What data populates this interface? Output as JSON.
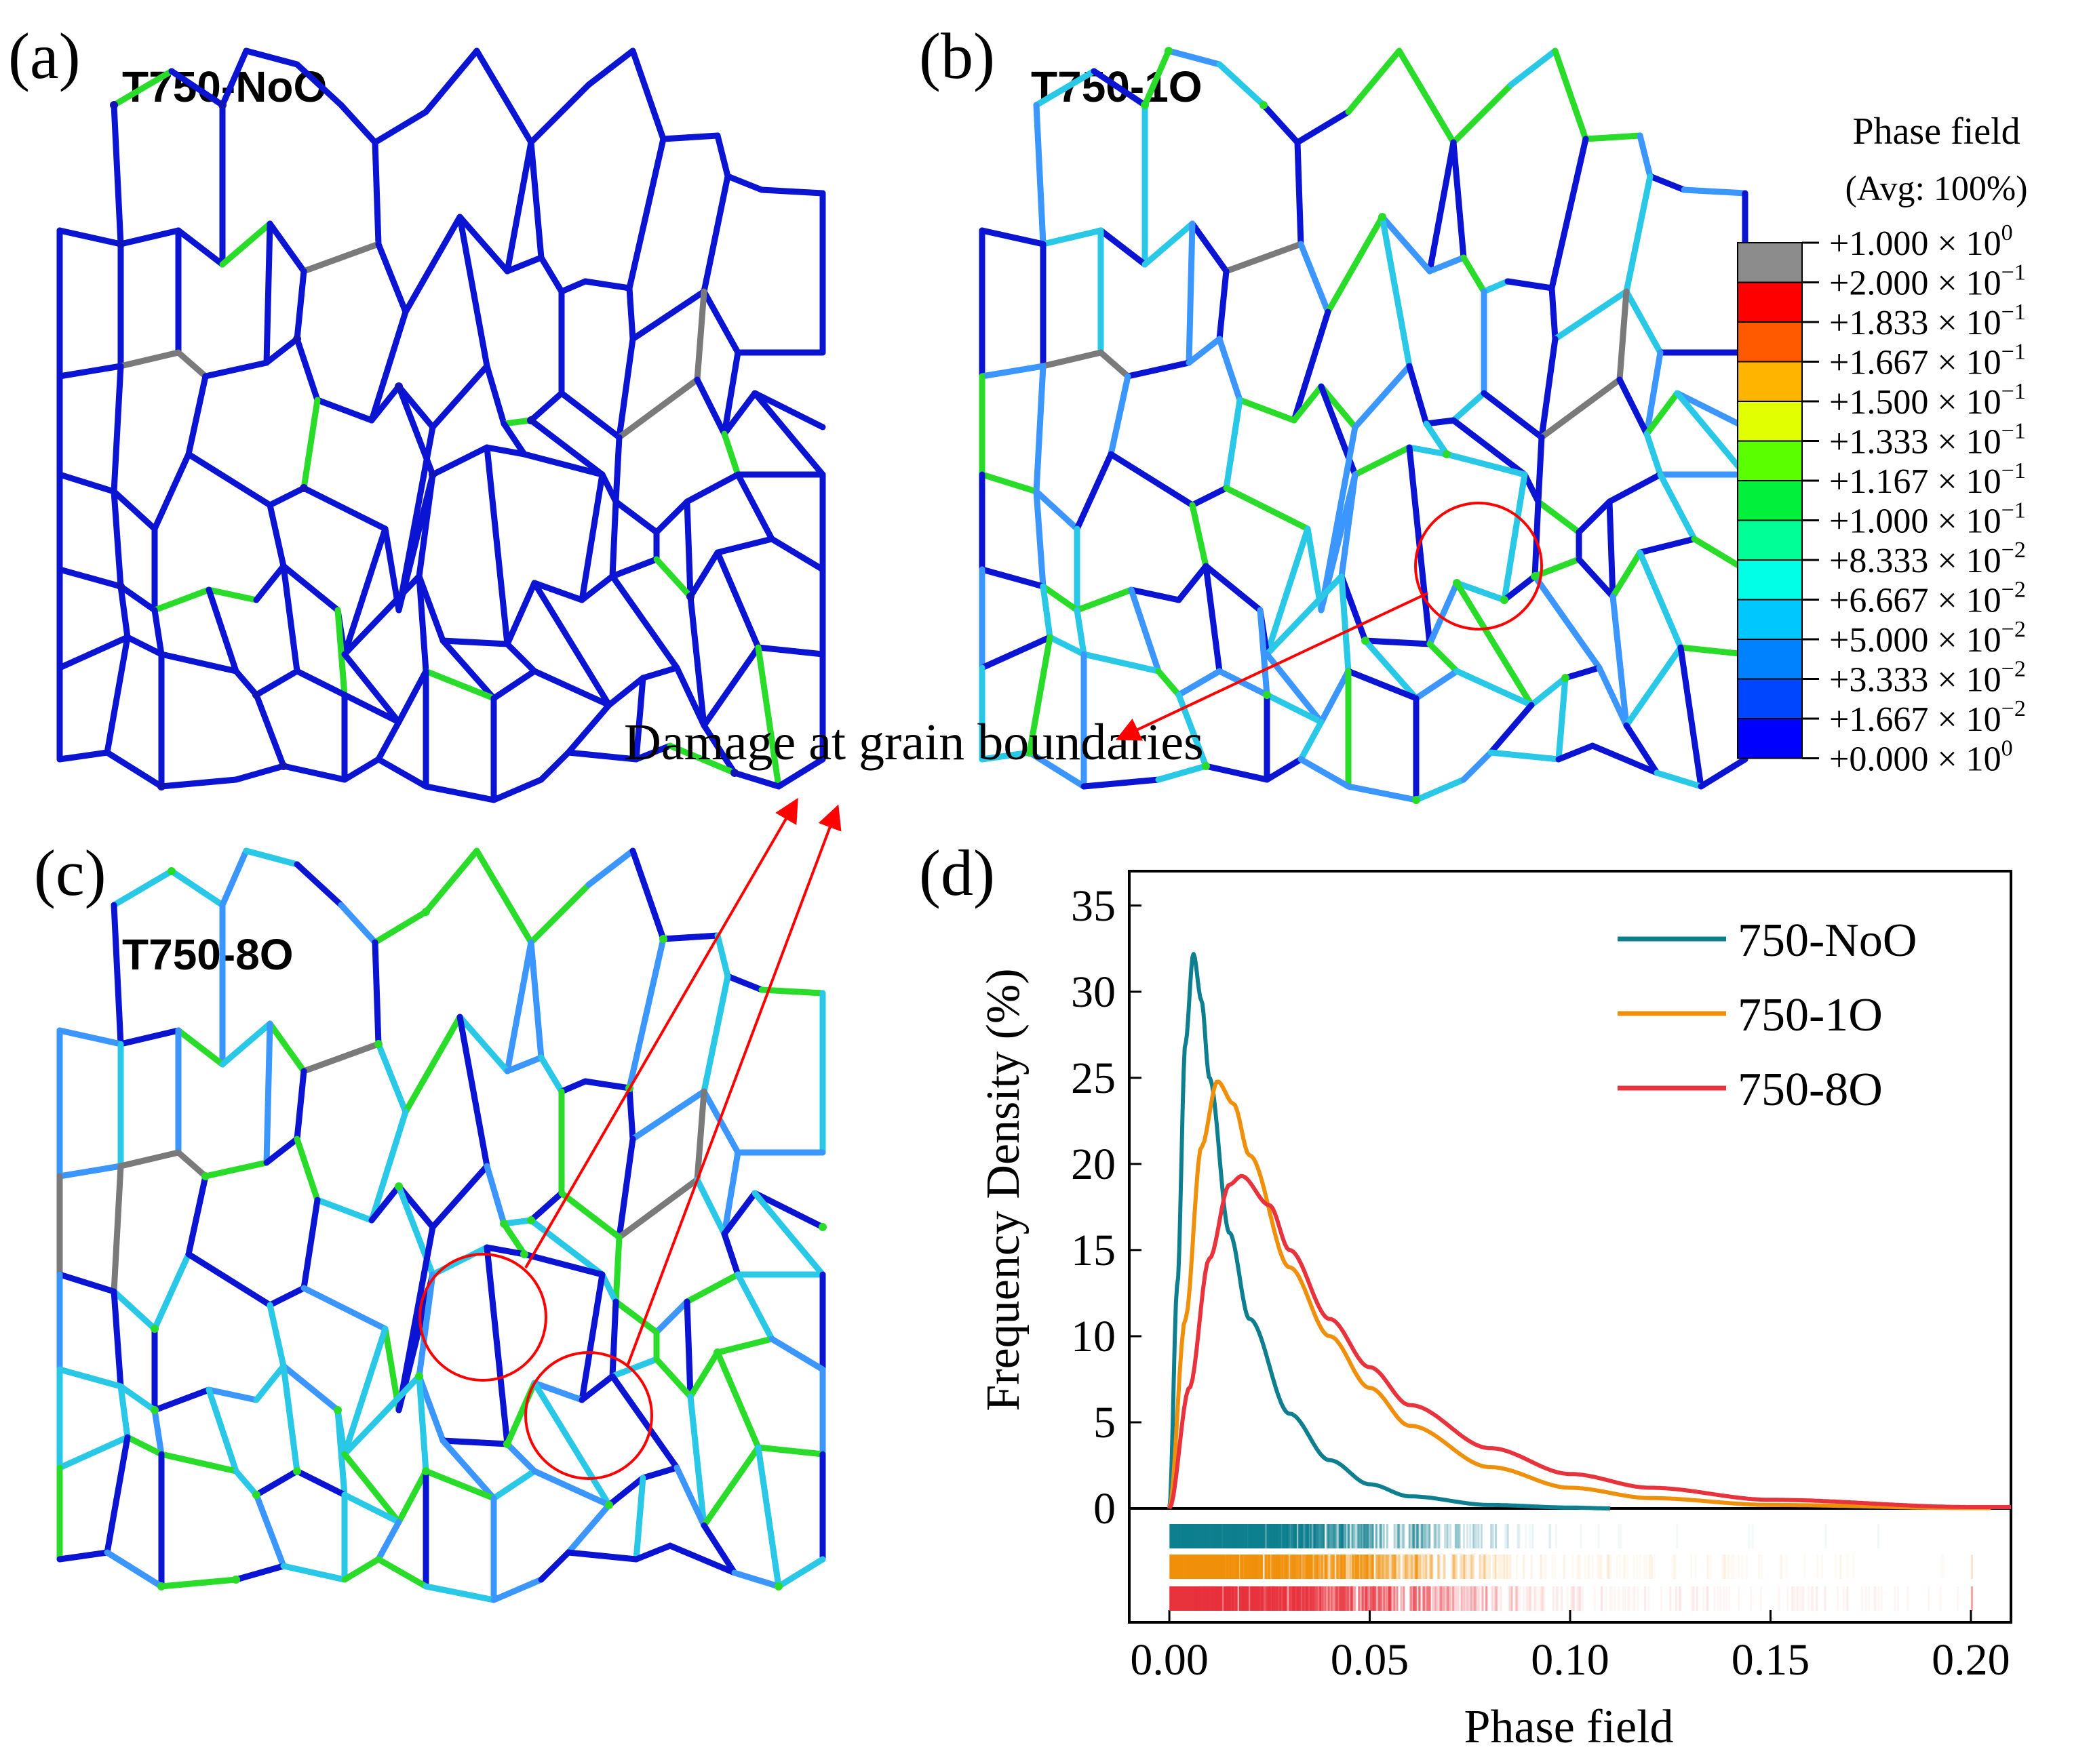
{
  "panels": {
    "a": {
      "letter": "(a)",
      "title": "T750-NoO"
    },
    "b": {
      "letter": "(b)",
      "title": "T750-1O"
    },
    "c": {
      "letter": "(c)",
      "title": "T750-8O"
    },
    "d": {
      "letter": "(d)"
    }
  },
  "annotation": "Damage at grain boundaries",
  "legend_colorbar": {
    "title": "Phase field",
    "subtitle": "(Avg: 100%)",
    "entries": [
      {
        "mantissa": "+1.000",
        "exponent": "0",
        "color": "#8c8c8c"
      },
      {
        "mantissa": "+2.000",
        "exponent": "−1",
        "color": "#ff0000"
      },
      {
        "mantissa": "+1.833",
        "exponent": "−1",
        "color": "#ff5a00"
      },
      {
        "mantissa": "+1.667",
        "exponent": "−1",
        "color": "#ffb400"
      },
      {
        "mantissa": "+1.500",
        "exponent": "−1",
        "color": "#e1ff00"
      },
      {
        "mantissa": "+1.333",
        "exponent": "−1",
        "color": "#5aff00"
      },
      {
        "mantissa": "+1.167",
        "exponent": "−1",
        "color": "#00f03c"
      },
      {
        "mantissa": "+1.000",
        "exponent": "−1",
        "color": "#00ff96"
      },
      {
        "mantissa": "+8.333",
        "exponent": "−2",
        "color": "#00ffe6"
      },
      {
        "mantissa": "+6.667",
        "exponent": "−2",
        "color": "#00c8ff"
      },
      {
        "mantissa": "+5.000",
        "exponent": "−2",
        "color": "#0082ff"
      },
      {
        "mantissa": "+3.333",
        "exponent": "−2",
        "color": "#0046ff"
      },
      {
        "mantissa": "+1.667",
        "exponent": "−2",
        "color": "#0000ff"
      },
      {
        "mantissa": "+0.000",
        "exponent": "0",
        "color": null
      }
    ],
    "times_symbol": "× 10"
  },
  "colors": {
    "blue": "#0a14d2",
    "navy": "#1414b4",
    "cyan": "#28c8e6",
    "lightblue": "#3c96ff",
    "green": "#2adc2a",
    "gray": "#7a7a7a",
    "red": "#ff0000",
    "faint": "#b4b4f0",
    "NoO": "#0e7f8f",
    "1O": "#f0900a",
    "8O": "#e8323c"
  },
  "chart_data": {
    "type": "line",
    "xlabel": "Phase field",
    "ylabel": "Frequency Density (%)",
    "xlim": [
      -0.01,
      0.21
    ],
    "ylim": [
      0,
      37
    ],
    "xticks": [
      0.0,
      0.05,
      0.1,
      0.15,
      0.2
    ],
    "xtick_labels": [
      "0.00",
      "0.05",
      "0.10",
      "0.15",
      "0.20"
    ],
    "yticks": [
      0,
      5,
      10,
      15,
      20,
      25,
      30,
      35
    ],
    "ytick_labels": [
      "0",
      "5",
      "10",
      "15",
      "20",
      "25",
      "30",
      "35"
    ],
    "legend_position": "top-right",
    "series": [
      {
        "name": "750-NoO",
        "color": "#0e7f8f",
        "peak_x": 0.006,
        "peak_y": 32.2,
        "x_end": 0.11,
        "x": [
          0,
          0.002,
          0.004,
          0.006,
          0.008,
          0.01,
          0.015,
          0.02,
          0.03,
          0.04,
          0.05,
          0.06,
          0.08,
          0.1,
          0.11
        ],
        "y": [
          0,
          13,
          27,
          32.2,
          29.5,
          25,
          16,
          11,
          5.5,
          2.8,
          1.4,
          0.7,
          0.2,
          0.05,
          0
        ]
      },
      {
        "name": "750-1O",
        "color": "#f0900a",
        "peak_x": 0.012,
        "peak_y": 24.8,
        "x_end": 0.205,
        "x": [
          0,
          0.004,
          0.008,
          0.012,
          0.016,
          0.02,
          0.03,
          0.04,
          0.05,
          0.06,
          0.08,
          0.1,
          0.12,
          0.15,
          0.2
        ],
        "y": [
          0,
          11,
          21,
          24.8,
          23.5,
          20.5,
          14,
          10,
          7,
          4.8,
          2.4,
          1.2,
          0.6,
          0.2,
          0.02
        ]
      },
      {
        "name": "750-8O",
        "color": "#e8323c",
        "peak_x": 0.018,
        "peak_y": 19.3,
        "x_end": 0.21,
        "x": [
          0,
          0.005,
          0.01,
          0.015,
          0.018,
          0.025,
          0.03,
          0.04,
          0.05,
          0.06,
          0.08,
          0.1,
          0.12,
          0.15,
          0.2
        ],
        "y": [
          0,
          7,
          14.5,
          18.8,
          19.3,
          17.6,
          15,
          11,
          8.2,
          6,
          3.5,
          2,
          1.2,
          0.5,
          0.08
        ]
      }
    ],
    "rug_rows": [
      "750-NoO",
      "750-1O",
      "750-8O"
    ]
  }
}
